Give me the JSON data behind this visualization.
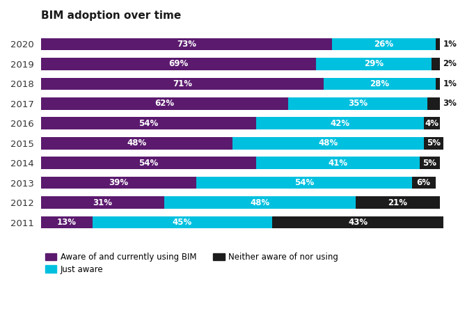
{
  "title": "BIM adoption over time",
  "years": [
    2020,
    2019,
    2018,
    2017,
    2016,
    2015,
    2014,
    2013,
    2012,
    2011
  ],
  "aware_using": [
    73,
    69,
    71,
    62,
    54,
    48,
    54,
    39,
    31,
    13
  ],
  "just_aware": [
    26,
    29,
    28,
    35,
    42,
    48,
    41,
    54,
    48,
    45
  ],
  "neither": [
    1,
    2,
    1,
    3,
    4,
    5,
    5,
    6,
    21,
    43
  ],
  "color_aware_using": "#5B1A6E",
  "color_just_aware": "#00C0DF",
  "color_neither": "#1C1C1C",
  "title_fontsize": 11,
  "bar_height": 0.62,
  "figsize": [
    6.81,
    4.57
  ],
  "dpi": 100,
  "background_color": "#FFFFFF",
  "legend_labels": [
    "Aware of and currently using BIM",
    "Just aware",
    "Neither aware of nor using"
  ],
  "label_fontsize": 8.5,
  "ytick_fontsize": 9.5
}
